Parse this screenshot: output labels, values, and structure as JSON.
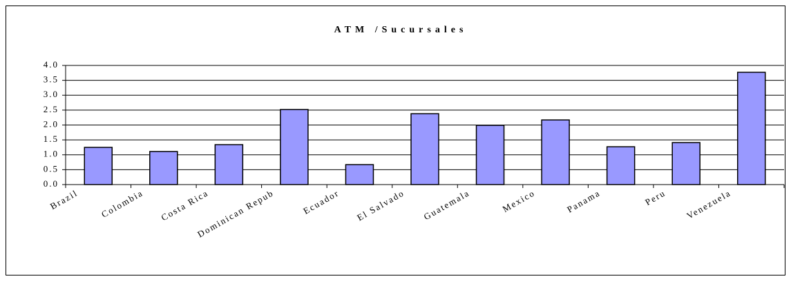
{
  "chart_data": {
    "type": "bar",
    "title": "ATM /Sucursales",
    "categories": [
      "Brazil",
      "Colombia",
      "Costa Rica",
      "Dominican Repub",
      "Ecuador",
      "El Salvado",
      "Guatemala",
      "Mexico",
      "Panama",
      "Peru",
      "Venezuela"
    ],
    "values": [
      1.25,
      1.11,
      1.34,
      2.52,
      0.67,
      2.38,
      1.99,
      2.17,
      1.27,
      1.41,
      3.77
    ],
    "color": "#9999ff",
    "ylim": [
      0,
      4
    ],
    "yticks": [
      {
        "value": 0,
        "label": "0.0"
      },
      {
        "value": 0.5,
        "label": "0.5"
      },
      {
        "value": 1,
        "label": "1.0"
      },
      {
        "value": 1.5,
        "label": "1.5"
      },
      {
        "value": 2,
        "label": "2.0"
      },
      {
        "value": 2.5,
        "label": "2.5"
      },
      {
        "value": 3,
        "label": "3.0"
      },
      {
        "value": 3.5,
        "label": "3.5"
      },
      {
        "value": 4,
        "label": "4.0"
      }
    ],
    "grid": true
  }
}
